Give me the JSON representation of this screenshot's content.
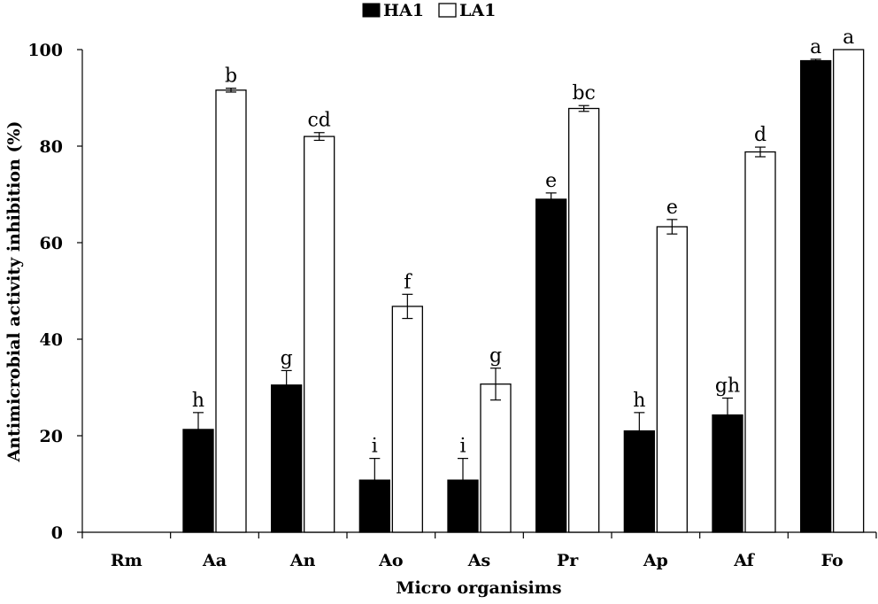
{
  "chart_data": {
    "type": "bar",
    "title": "",
    "xlabel": "Micro organisims",
    "ylabel": "Antimicrobial activity inhibition (%)",
    "ylim": [
      0,
      100
    ],
    "yticks": [
      0,
      20,
      40,
      60,
      80,
      100
    ],
    "grid": false,
    "legend_position": "top-center",
    "categories": [
      "Rm",
      "Aa",
      "An",
      "Ao",
      "As",
      "Pr",
      "Ap",
      "Af",
      "Fo"
    ],
    "series": [
      {
        "name": "HA1",
        "color": "#000000",
        "values": [
          0,
          21.3,
          30.5,
          10.8,
          10.8,
          69.0,
          21.0,
          24.3,
          97.7
        ],
        "errors": [
          0,
          3.5,
          3.0,
          4.5,
          4.5,
          1.3,
          3.8,
          3.5,
          0.3
        ],
        "labels": [
          "",
          "h",
          "g",
          "i",
          "i",
          "e",
          "h",
          "gh",
          "a"
        ]
      },
      {
        "name": "LA1",
        "color": "#ffffff",
        "values": [
          0,
          91.6,
          82.0,
          46.8,
          30.7,
          87.8,
          63.3,
          78.8,
          100.0
        ],
        "errors": [
          0,
          0.4,
          0.8,
          2.5,
          3.3,
          0.6,
          1.5,
          1.0,
          0
        ],
        "labels": [
          "",
          "b",
          "cd",
          "f",
          "g",
          "bc",
          "e",
          "d",
          "a"
        ]
      }
    ]
  }
}
